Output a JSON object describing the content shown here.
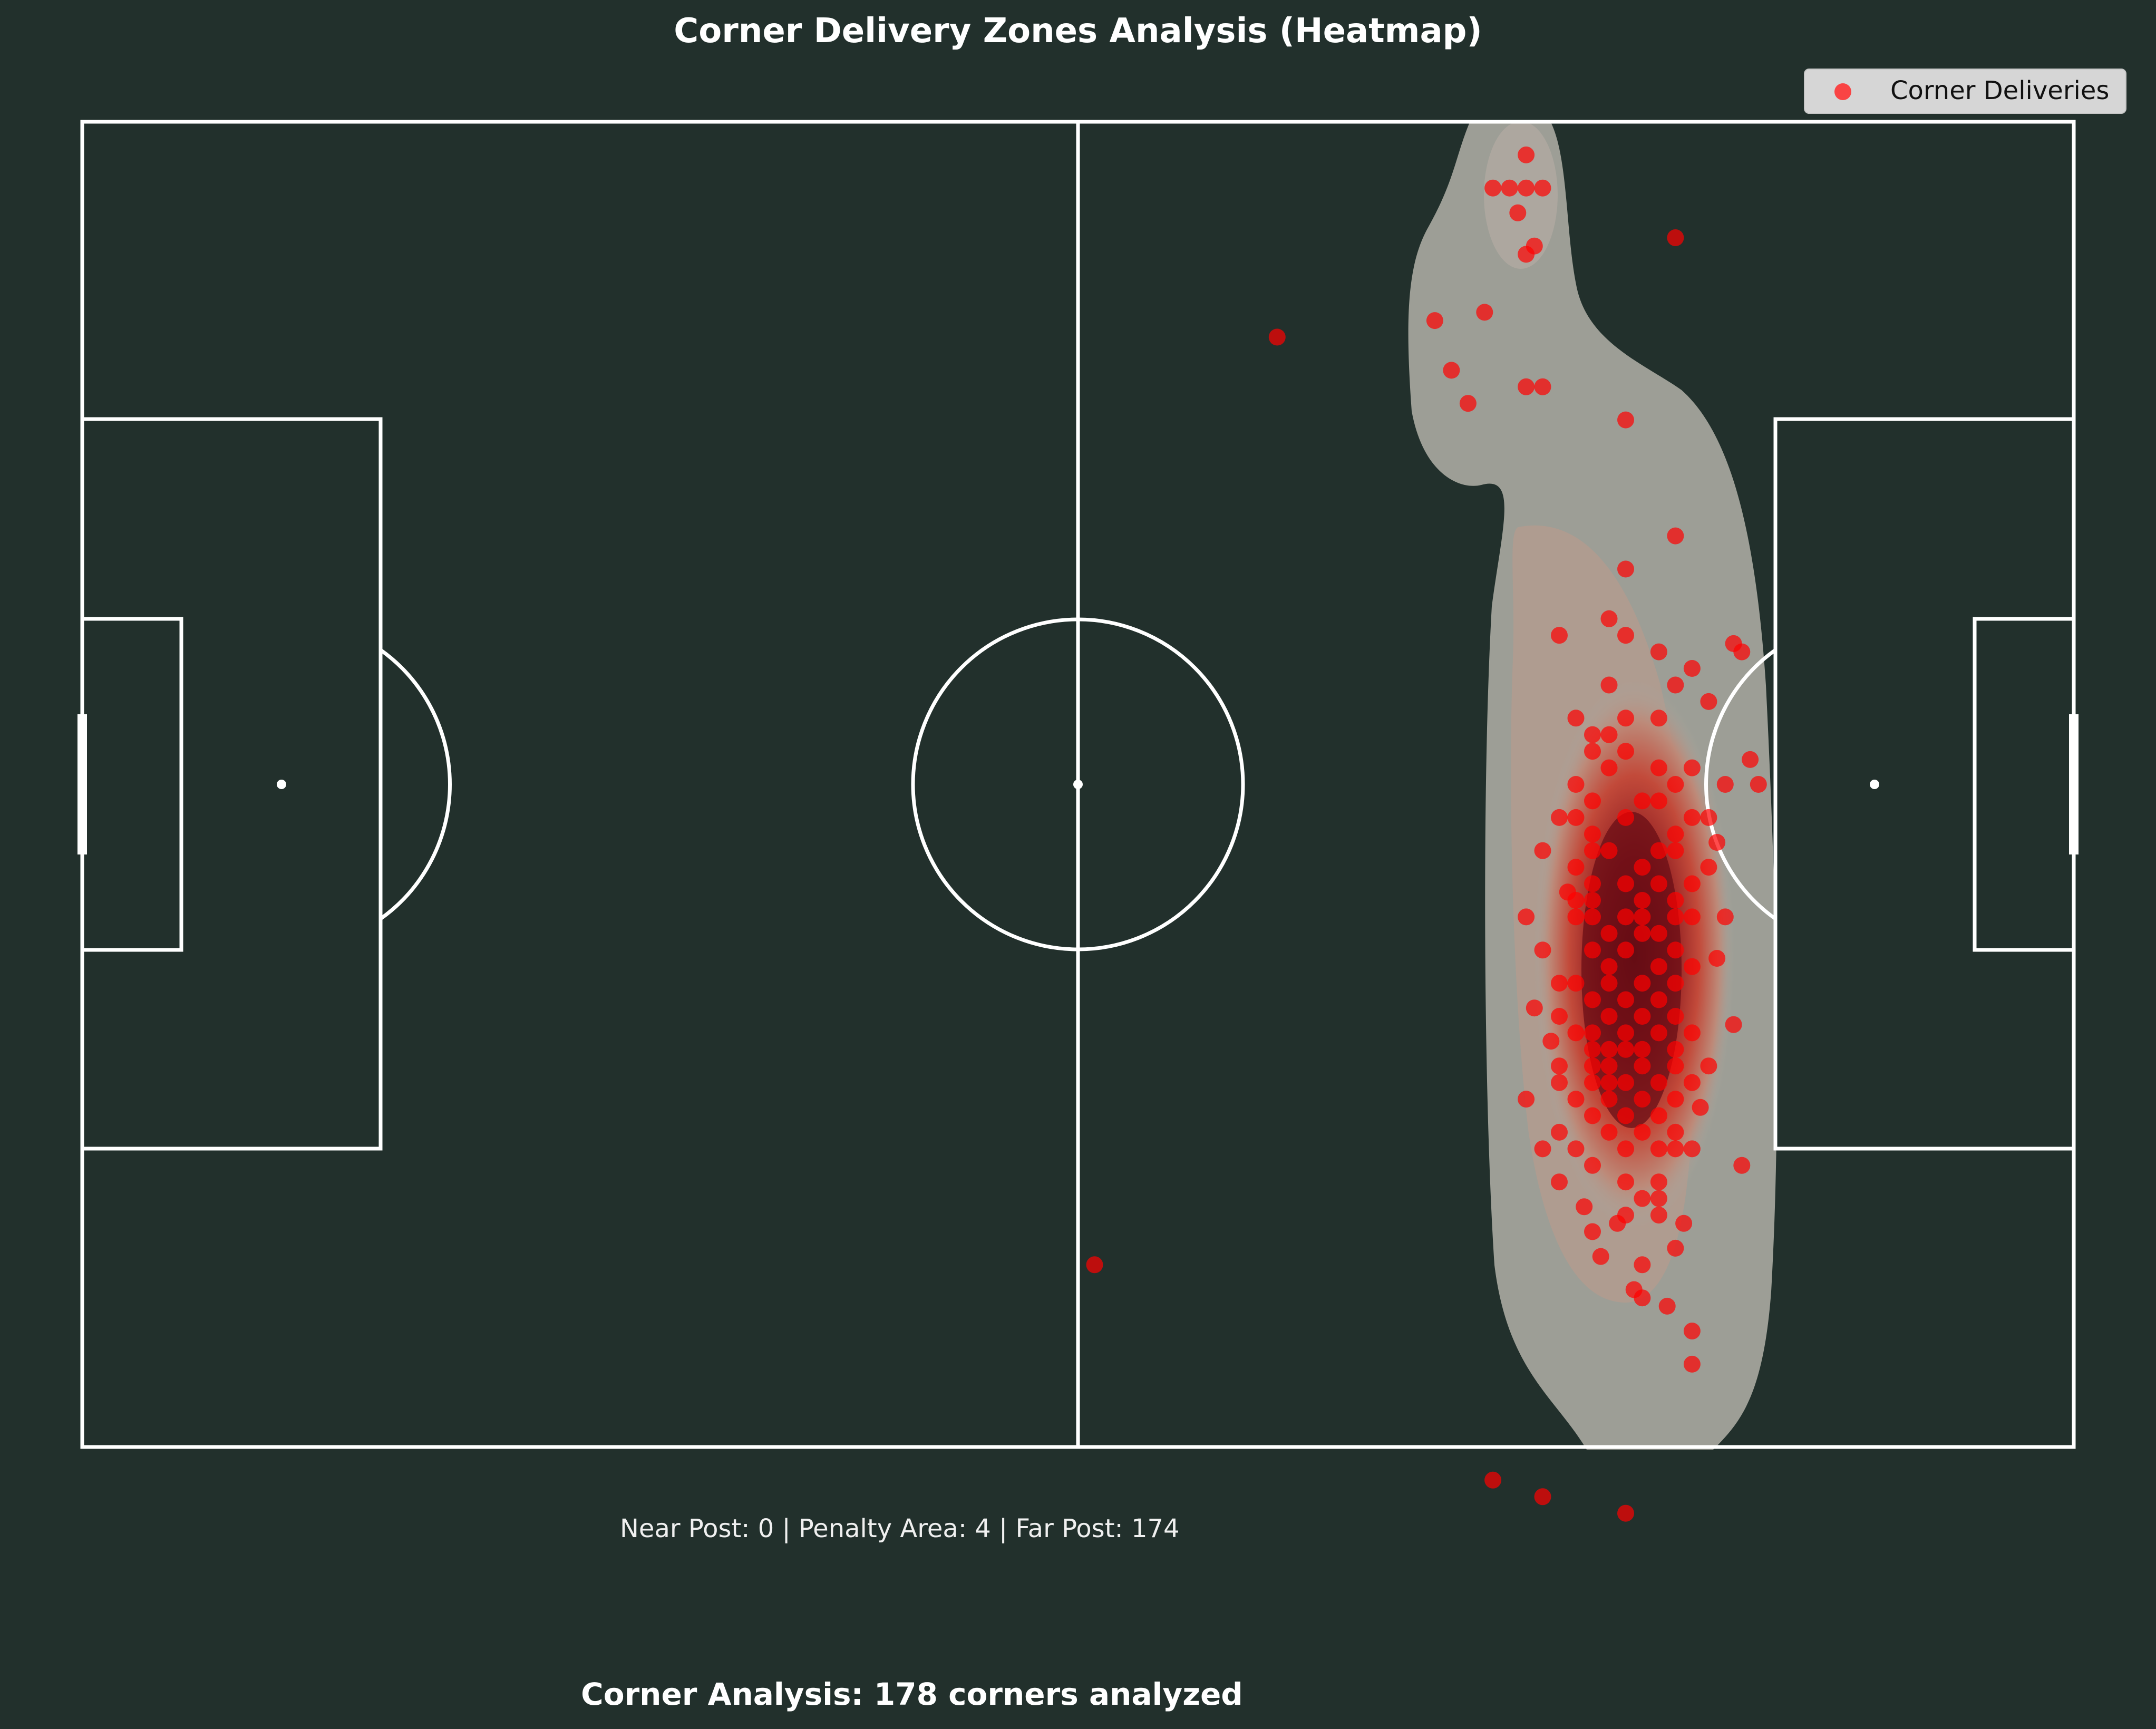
{
  "title": "Corner Delivery Zones Analysis (Heatmap)",
  "zones_text": "Near Post: 0 | Penalty Area: 4 | Far Post: 174",
  "summary_text": "Corner Analysis: 178 corners analyzed",
  "legend": {
    "label": "Corner Deliveries",
    "location": "upper right"
  },
  "colors": {
    "background": "#22302c",
    "pitch_lines": "#ffffff",
    "marker": "#ff0000",
    "density_low": "#a8a8a0",
    "density_high": "#5a0a12"
  },
  "chart_data": {
    "type": "scatter",
    "title": "Corner Delivery Zones Analysis (Heatmap)",
    "xlabel": "",
    "ylabel": "",
    "xlim": [
      0,
      120
    ],
    "ylim": [
      0,
      80
    ],
    "y_direction": "top-to-bottom",
    "grid": false,
    "overlay": "kernel density heatmap (grey to dark red)",
    "series": [
      {
        "name": "Corner Deliveries",
        "points": [
          [
            87.0,
            2.0
          ],
          [
            85.0,
            4.0
          ],
          [
            86.0,
            4.0
          ],
          [
            87.0,
            4.0
          ],
          [
            88.0,
            4.0
          ],
          [
            87.0,
            8.0
          ],
          [
            96.0,
            7.0
          ],
          [
            72.0,
            13.0
          ],
          [
            81.5,
            12.0
          ],
          [
            82.5,
            15.0
          ],
          [
            83.5,
            17.0
          ],
          [
            87.0,
            16.0
          ],
          [
            88.0,
            16.0
          ],
          [
            93.0,
            18.0
          ],
          [
            96.0,
            25.0
          ],
          [
            93.0,
            27.0
          ],
          [
            89.0,
            31.0
          ],
          [
            92.0,
            30.0
          ],
          [
            93.0,
            31.0
          ],
          [
            95.0,
            32.0
          ],
          [
            97.0,
            33.0
          ],
          [
            100.0,
            32.0
          ],
          [
            92.0,
            34.0
          ],
          [
            96.0,
            34.0
          ],
          [
            98.0,
            35.0
          ],
          [
            90.0,
            36.0
          ],
          [
            93.0,
            36.0
          ],
          [
            95.0,
            36.0
          ],
          [
            91.0,
            37.0
          ],
          [
            92.0,
            37.0
          ],
          [
            91.0,
            38.0
          ],
          [
            93.0,
            38.0
          ],
          [
            92.0,
            39.0
          ],
          [
            95.0,
            39.0
          ],
          [
            97.0,
            39.0
          ],
          [
            90.0,
            40.0
          ],
          [
            96.0,
            40.0
          ],
          [
            91.0,
            41.0
          ],
          [
            94.0,
            41.0
          ],
          [
            95.0,
            41.0
          ],
          [
            89.0,
            42.0
          ],
          [
            90.0,
            42.0
          ],
          [
            93.0,
            42.0
          ],
          [
            97.0,
            42.0
          ],
          [
            98.0,
            42.0
          ],
          [
            91.0,
            43.0
          ],
          [
            96.0,
            43.0
          ],
          [
            88.0,
            44.0
          ],
          [
            91.0,
            44.0
          ],
          [
            92.0,
            44.0
          ],
          [
            95.0,
            44.0
          ],
          [
            96.0,
            44.0
          ],
          [
            90.0,
            45.0
          ],
          [
            94.0,
            45.0
          ],
          [
            98.0,
            45.0
          ],
          [
            91.0,
            46.0
          ],
          [
            93.0,
            46.0
          ],
          [
            95.0,
            46.0
          ],
          [
            97.0,
            46.0
          ],
          [
            90.0,
            47.0
          ],
          [
            91.0,
            47.0
          ],
          [
            94.0,
            47.0
          ],
          [
            96.0,
            47.0
          ],
          [
            87.0,
            48.0
          ],
          [
            90.0,
            48.0
          ],
          [
            91.0,
            48.0
          ],
          [
            93.0,
            48.0
          ],
          [
            94.0,
            48.0
          ],
          [
            96.0,
            48.0
          ],
          [
            97.0,
            48.0
          ],
          [
            99.0,
            48.0
          ],
          [
            92.0,
            49.0
          ],
          [
            94.0,
            49.0
          ],
          [
            95.0,
            49.0
          ],
          [
            88.0,
            50.0
          ],
          [
            91.0,
            50.0
          ],
          [
            93.0,
            50.0
          ],
          [
            96.0,
            50.0
          ],
          [
            92.0,
            51.0
          ],
          [
            95.0,
            51.0
          ],
          [
            97.0,
            51.0
          ],
          [
            89.0,
            52.0
          ],
          [
            90.0,
            52.0
          ],
          [
            92.0,
            52.0
          ],
          [
            94.0,
            52.0
          ],
          [
            96.0,
            52.0
          ],
          [
            91.0,
            53.0
          ],
          [
            93.0,
            53.0
          ],
          [
            95.0,
            53.0
          ],
          [
            89.0,
            54.0
          ],
          [
            92.0,
            54.0
          ],
          [
            94.0,
            54.0
          ],
          [
            96.0,
            54.0
          ],
          [
            90.0,
            55.0
          ],
          [
            91.0,
            55.0
          ],
          [
            93.0,
            55.0
          ],
          [
            95.0,
            55.0
          ],
          [
            97.0,
            55.0
          ],
          [
            91.0,
            56.0
          ],
          [
            92.0,
            56.0
          ],
          [
            93.0,
            56.0
          ],
          [
            94.0,
            56.0
          ],
          [
            96.0,
            56.0
          ],
          [
            89.0,
            57.0
          ],
          [
            91.0,
            57.0
          ],
          [
            92.0,
            57.0
          ],
          [
            94.0,
            57.0
          ],
          [
            96.0,
            57.0
          ],
          [
            98.0,
            57.0
          ],
          [
            89.0,
            58.0
          ],
          [
            91.0,
            58.0
          ],
          [
            92.0,
            58.0
          ],
          [
            93.0,
            58.0
          ],
          [
            95.0,
            58.0
          ],
          [
            97.0,
            58.0
          ],
          [
            87.0,
            59.0
          ],
          [
            90.0,
            59.0
          ],
          [
            92.0,
            59.0
          ],
          [
            94.0,
            59.0
          ],
          [
            96.0,
            59.0
          ],
          [
            91.0,
            60.0
          ],
          [
            93.0,
            60.0
          ],
          [
            95.0,
            60.0
          ],
          [
            89.0,
            61.0
          ],
          [
            92.0,
            61.0
          ],
          [
            94.0,
            61.0
          ],
          [
            96.0,
            61.0
          ],
          [
            88.0,
            62.0
          ],
          [
            90.0,
            62.0
          ],
          [
            93.0,
            62.0
          ],
          [
            95.0,
            62.0
          ],
          [
            96.0,
            62.0
          ],
          [
            97.0,
            62.0
          ],
          [
            91.0,
            63.0
          ],
          [
            100.0,
            63.0
          ],
          [
            93.0,
            64.0
          ],
          [
            95.0,
            64.0
          ],
          [
            89.0,
            64.0
          ],
          [
            94.0,
            65.0
          ],
          [
            95.0,
            65.0
          ],
          [
            93.0,
            66.0
          ],
          [
            95.0,
            66.0
          ],
          [
            91.0,
            67.0
          ],
          [
            96.0,
            68.0
          ],
          [
            94.0,
            69.0
          ],
          [
            94.0,
            71.0
          ],
          [
            97.0,
            73.0
          ],
          [
            97.0,
            75.0
          ],
          [
            61.0,
            69.0
          ],
          [
            85.0,
            82.0
          ],
          [
            88.0,
            83.0
          ],
          [
            93.0,
            84.0
          ],
          [
            87.5,
            7.5
          ],
          [
            86.5,
            5.5
          ],
          [
            84.5,
            11.5
          ],
          [
            99.5,
            31.5
          ],
          [
            100.5,
            38.5
          ],
          [
            101.0,
            40.0
          ],
          [
            99.0,
            40.0
          ],
          [
            98.5,
            43.5
          ],
          [
            89.5,
            46.5
          ],
          [
            98.5,
            50.5
          ],
          [
            87.5,
            53.5
          ],
          [
            88.5,
            55.5
          ],
          [
            99.5,
            54.5
          ],
          [
            97.5,
            59.5
          ],
          [
            90.5,
            65.5
          ],
          [
            92.5,
            66.5
          ],
          [
            96.5,
            66.5
          ],
          [
            91.5,
            68.5
          ],
          [
            93.5,
            70.5
          ],
          [
            95.5,
            71.5
          ]
        ]
      }
    ]
  }
}
